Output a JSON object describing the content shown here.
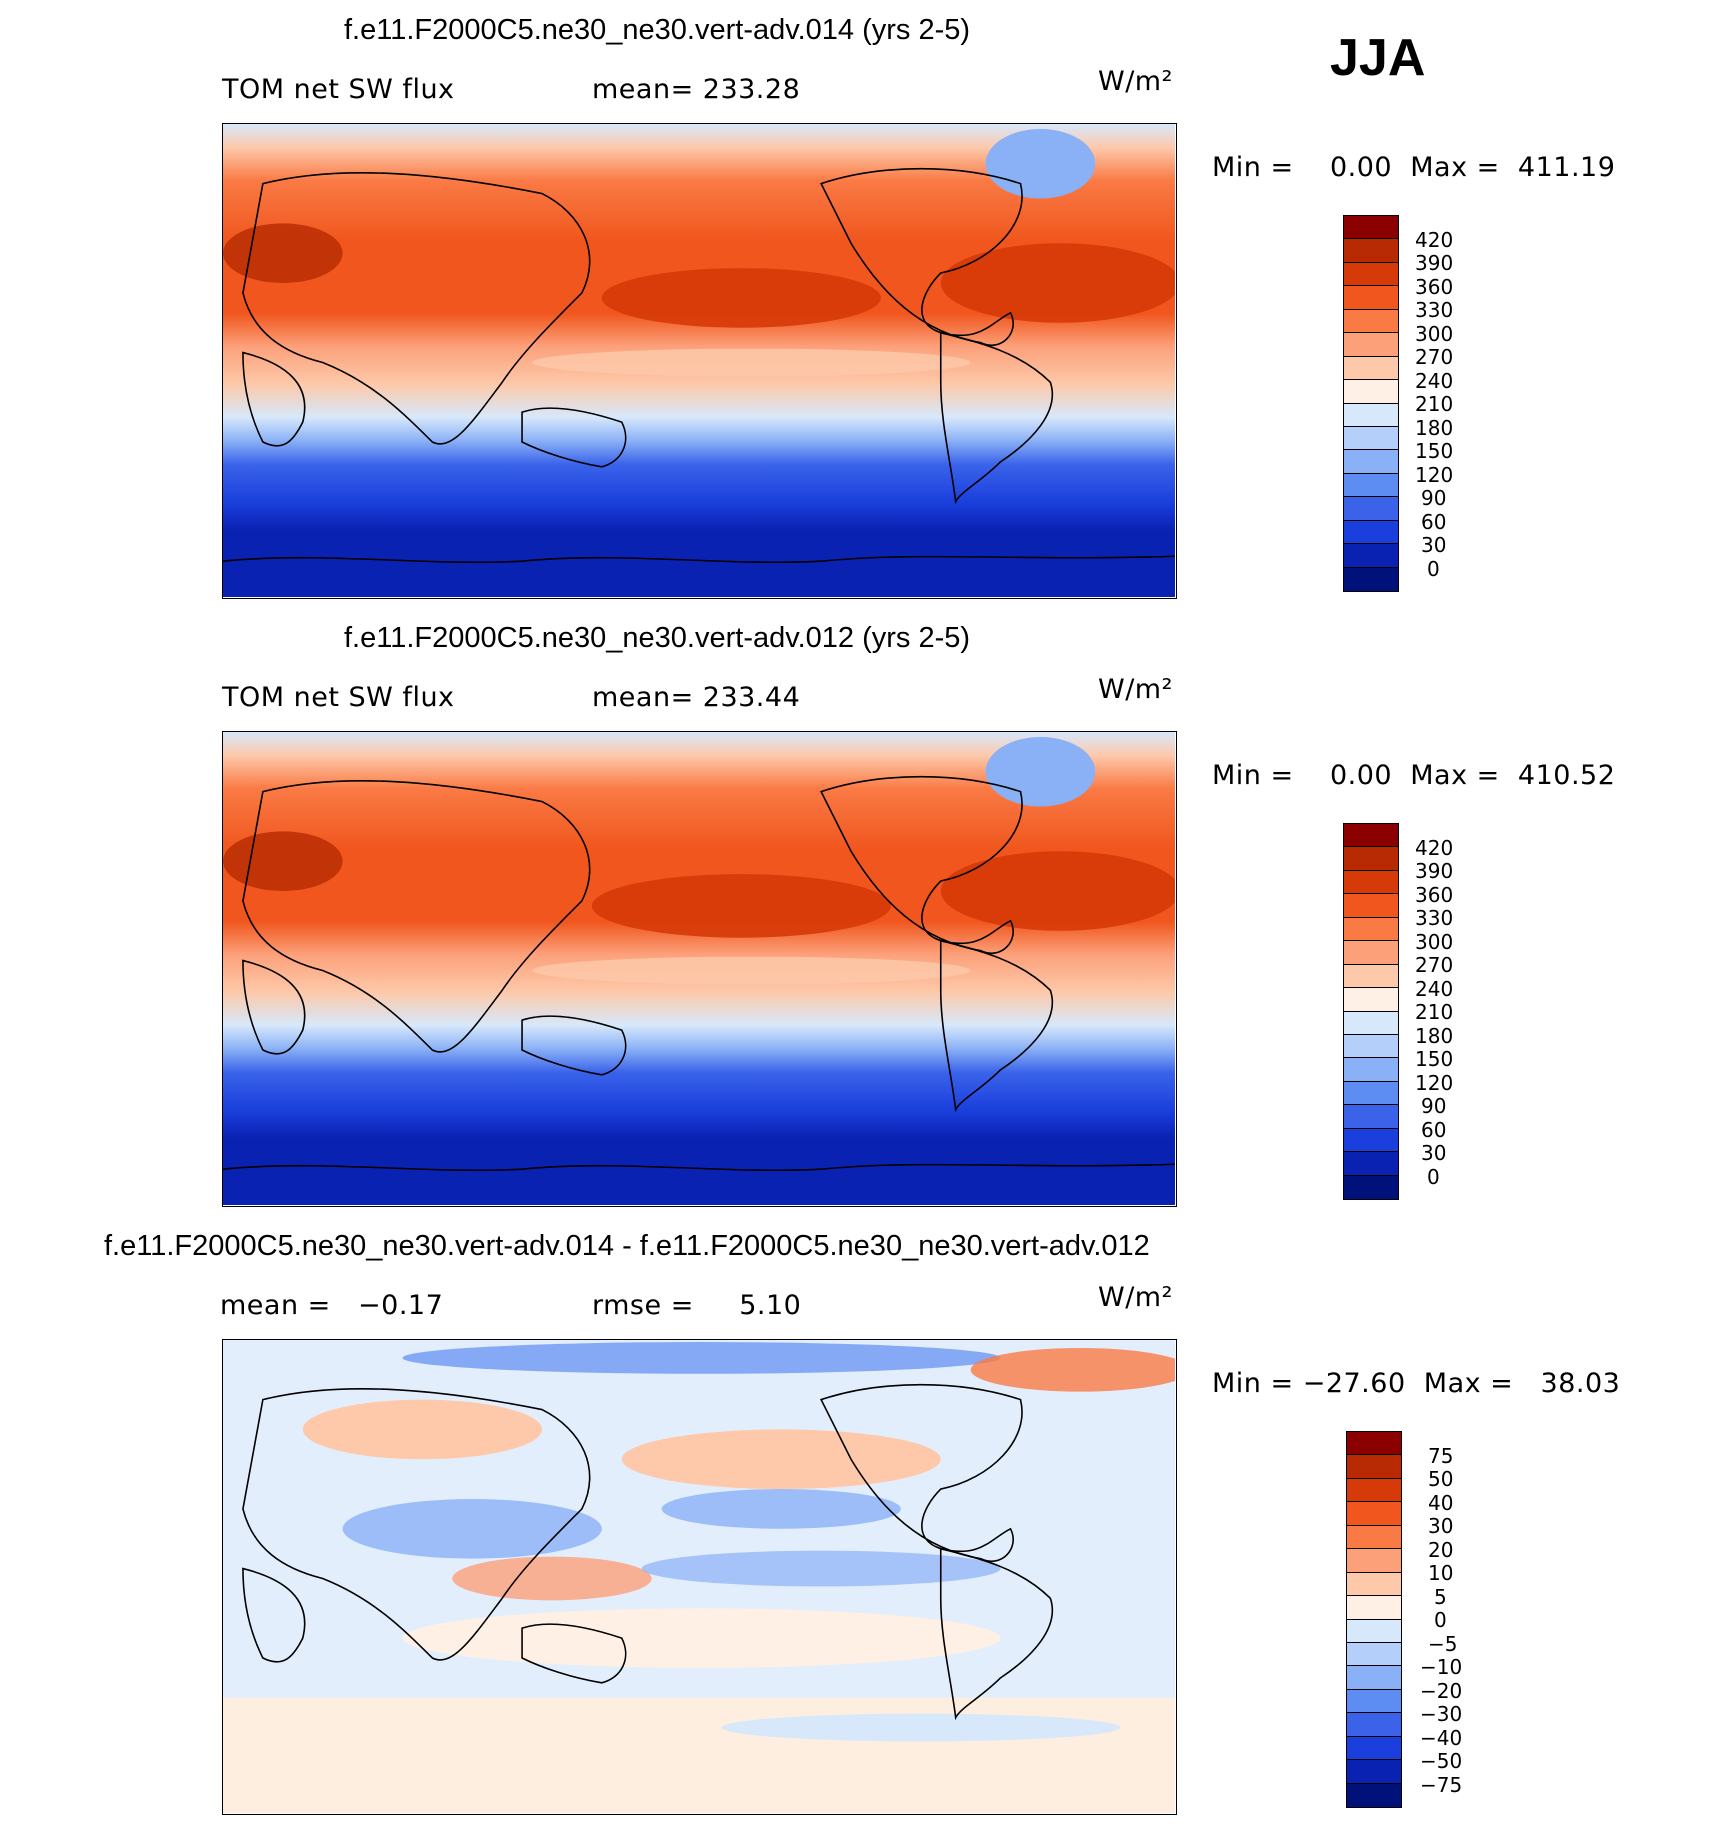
{
  "season": "JJA",
  "panels": [
    {
      "title": "f.e11.F2000C5.ne30_ne30.vert-adv.014 (yrs 2-5)",
      "left_label": "TOM net SW flux",
      "mid_label": "mean= 233.28",
      "units": "W/m²",
      "minmax": "Min =    0.00  Max =  411.19",
      "colorbar": {
        "ticks": [
          "420",
          "390",
          "360",
          "330",
          "300",
          "270",
          "240",
          "210",
          "180",
          "150",
          "120",
          "90",
          "60",
          "30",
          "0"
        ],
        "colors": [
          "#8b0000",
          "#b72a03",
          "#d63a08",
          "#f0561d",
          "#fa7a45",
          "#fca07a",
          "#fdc9aa",
          "#fef0e4",
          "#d7e8fb",
          "#b3cffa",
          "#8ab0f6",
          "#5d8cf2",
          "#3a63ea",
          "#1a3fdc",
          "#0a22b2",
          "#00117a"
        ]
      }
    },
    {
      "title": "f.e11.F2000C5.ne30_ne30.vert-adv.012 (yrs 2-5)",
      "left_label": "TOM net SW flux",
      "mid_label": "mean= 233.44",
      "units": "W/m²",
      "minmax": "Min =    0.00  Max =  410.52",
      "colorbar": {
        "ticks": [
          "420",
          "390",
          "360",
          "330",
          "300",
          "270",
          "240",
          "210",
          "180",
          "150",
          "120",
          "90",
          "60",
          "30",
          "0"
        ],
        "colors": [
          "#8b0000",
          "#b72a03",
          "#d63a08",
          "#f0561d",
          "#fa7a45",
          "#fca07a",
          "#fdc9aa",
          "#fef0e4",
          "#d7e8fb",
          "#b3cffa",
          "#8ab0f6",
          "#5d8cf2",
          "#3a63ea",
          "#1a3fdc",
          "#0a22b2",
          "#00117a"
        ]
      }
    },
    {
      "title": "f.e11.F2000C5.ne30_ne30.vert-adv.014 - f.e11.F2000C5.ne30_ne30.vert-adv.012",
      "left_label": "mean =   −0.17",
      "mid_label": "rmse =     5.10",
      "units": "W/m²",
      "minmax": "Min = −27.60  Max =   38.03",
      "colorbar": {
        "ticks": [
          "75",
          "50",
          "40",
          "30",
          "20",
          "10",
          "5",
          "0",
          "−5",
          "−10",
          "−20",
          "−30",
          "−40",
          "−50",
          "−75"
        ],
        "colors": [
          "#8b0000",
          "#b72a03",
          "#d63a08",
          "#f0561d",
          "#fa7a45",
          "#fca07a",
          "#fdc9aa",
          "#fef0e4",
          "#d7e8fb",
          "#b3cffa",
          "#8ab0f6",
          "#5d8cf2",
          "#3a63ea",
          "#1a3fdc",
          "#0a22b2",
          "#00117a"
        ]
      }
    }
  ]
}
